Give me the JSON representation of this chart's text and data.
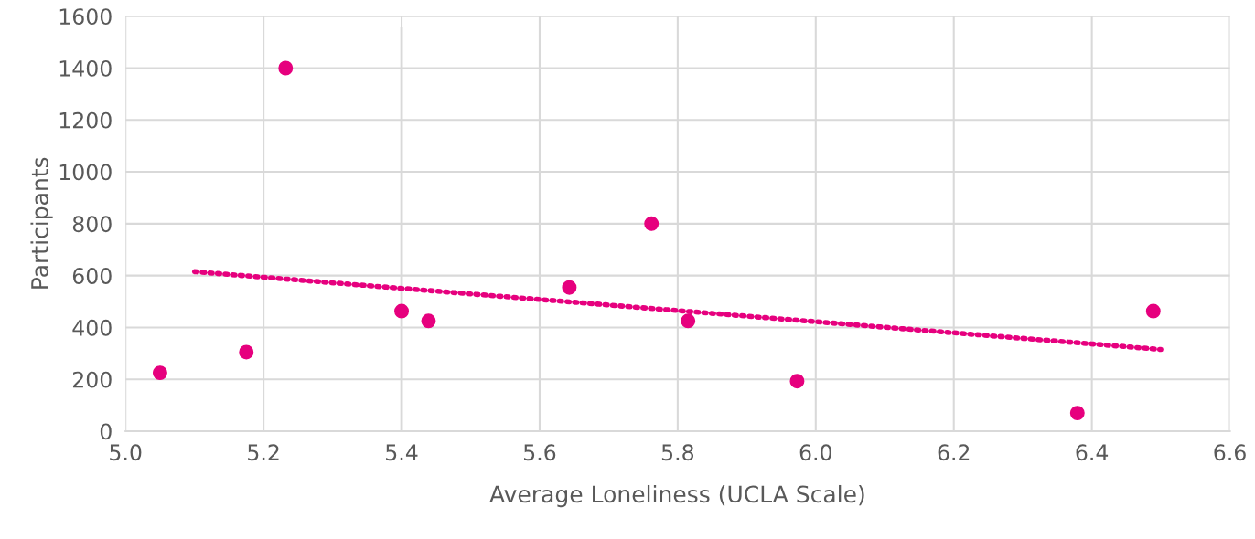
{
  "chart_data": {
    "type": "scatter",
    "xlabel": "Average Loneliness (UCLA Scale)",
    "ylabel": "Participants",
    "x": [
      5.05,
      5.175,
      5.232,
      5.4,
      5.439,
      5.643,
      5.762,
      5.815,
      5.973,
      6.379,
      6.489
    ],
    "series": [
      {
        "color": "#e6007e",
        "values": [
          225,
          305,
          1400,
          463,
          425,
          554,
          800,
          425,
          193,
          70,
          463
        ],
        "marker": "circle"
      },
      {
        "type": "line",
        "color": "#e6007e",
        "x": [
          5.1,
          6.5
        ],
        "values": [
          615,
          315
        ],
        "line_style": "dotted",
        "marker": "none"
      }
    ],
    "ref_lines": [
      {
        "axis": "x",
        "value": 5.4,
        "label": null,
        "color": "#d9d9d9"
      }
    ],
    "xlim": [
      5.0,
      6.6
    ],
    "xticks": [
      {
        "value": 5.0,
        "label": "5.0"
      },
      {
        "value": 5.2,
        "label": "5.2"
      },
      {
        "value": 5.4,
        "label": "5.4"
      },
      {
        "value": 5.6,
        "label": "5.6"
      },
      {
        "value": 5.8,
        "label": "5.8"
      },
      {
        "value": 6.0,
        "label": "6.0"
      },
      {
        "value": 6.2,
        "label": "6.2"
      },
      {
        "value": 6.4,
        "label": "6.4"
      },
      {
        "value": 6.6,
        "label": "6.6"
      }
    ],
    "ylim": [
      0,
      1600
    ],
    "yticks": [
      0,
      200,
      400,
      600,
      800,
      1000,
      1200,
      1400,
      1600
    ],
    "grid": true,
    "legend": false
  }
}
